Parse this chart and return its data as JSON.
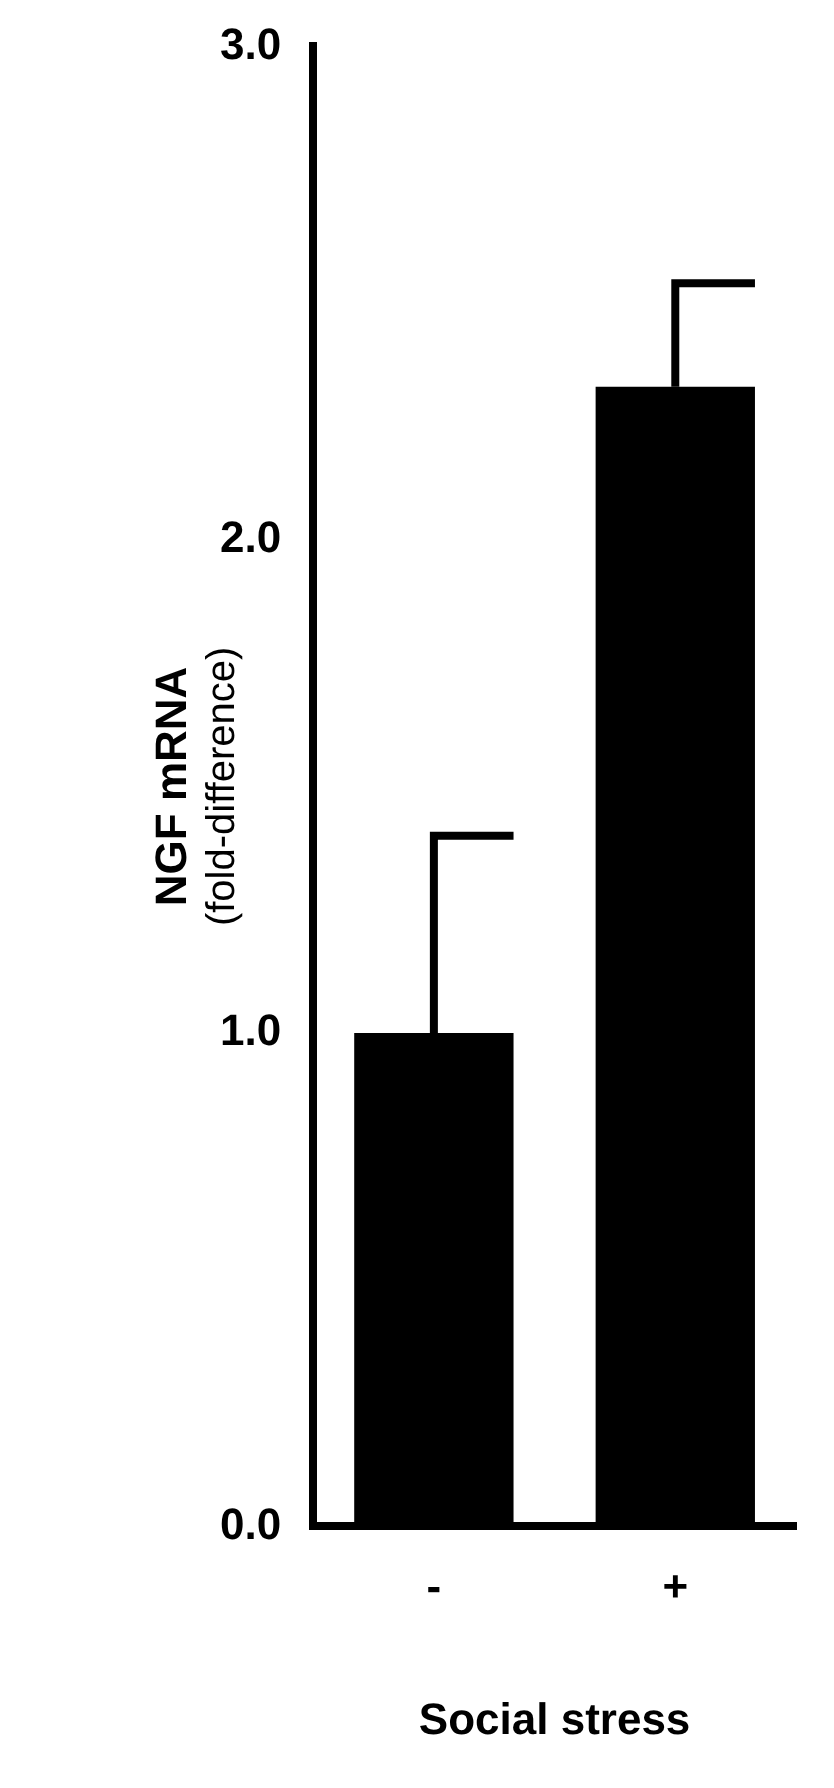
{
  "chart_data": {
    "type": "bar",
    "categories": [
      "-",
      "+"
    ],
    "values": [
      1.0,
      2.31
    ],
    "color": "#000000",
    "errors": [
      [
        1.0,
        1.4
      ],
      [
        2.31,
        2.52
      ]
    ],
    "ylim": [
      0,
      3
    ],
    "yticks": [
      {
        "value": 0,
        "label": "0.0"
      },
      {
        "value": 1,
        "label": "1.0"
      },
      {
        "value": 2,
        "label": "2.0"
      },
      {
        "value": 3,
        "label": "3.0"
      }
    ],
    "ylabel": "NGF mRNA\n(fold-difference)",
    "xlabel": "Social stress",
    "grid": false,
    "legend": false
  }
}
